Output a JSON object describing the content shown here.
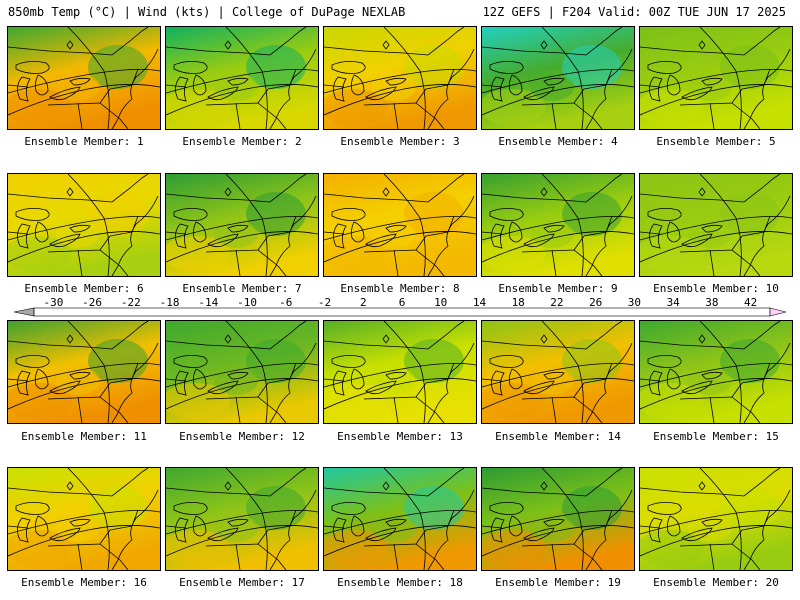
{
  "header": {
    "left": "850mb Temp (°C) | Wind (kts) | College of DuPage NEXLAB",
    "right": "12Z GEFS | F204 Valid: 00Z TUE JUN 17 2025"
  },
  "member_label_prefix": "Ensemble Member: ",
  "members": [
    {
      "number": "1",
      "base": "#f4b800",
      "north": "#3ea830",
      "south": "#f09000"
    },
    {
      "number": "2",
      "base": "#9acc10",
      "north": "#10b060",
      "south": "#d8d800"
    },
    {
      "number": "3",
      "base": "#f2d000",
      "north": "#c8d800",
      "south": "#f09800"
    },
    {
      "number": "4",
      "base": "#46ac2c",
      "north": "#20d0c0",
      "south": "#a8d010"
    },
    {
      "number": "5",
      "base": "#98cc10",
      "north": "#7cc018",
      "south": "#c8e000"
    },
    {
      "number": "6",
      "base": "#e8d800",
      "north": "#f0d000",
      "south": "#a8d010"
    },
    {
      "number": "7",
      "base": "#8ec418",
      "north": "#2c9c34",
      "south": "#f0d000"
    },
    {
      "number": "8",
      "base": "#f4d000",
      "north": "#f4b000",
      "south": "#f4b800"
    },
    {
      "number": "9",
      "base": "#98cc10",
      "north": "#38a030",
      "south": "#e0e000"
    },
    {
      "number": "10",
      "base": "#98cc10",
      "north": "#8cc418",
      "south": "#b8d810"
    },
    {
      "number": "11",
      "base": "#f2c000",
      "north": "#40a030",
      "south": "#f09000"
    },
    {
      "number": "12",
      "base": "#6cb822",
      "north": "#3ea830",
      "south": "#e8c800"
    },
    {
      "number": "13",
      "base": "#c8e000",
      "north": "#56b028",
      "south": "#e8e000"
    },
    {
      "number": "14",
      "base": "#f2c000",
      "north": "#8cc418",
      "south": "#f09800"
    },
    {
      "number": "15",
      "base": "#8ec418",
      "north": "#3ea830",
      "south": "#c8e000"
    },
    {
      "number": "16",
      "base": "#f2d000",
      "north": "#c8e000",
      "south": "#f0a800"
    },
    {
      "number": "17",
      "base": "#8ec418",
      "north": "#3ea830",
      "south": "#f0c000"
    },
    {
      "number": "18",
      "base": "#7cc018",
      "north": "#20c8a0",
      "south": "#f09800"
    },
    {
      "number": "19",
      "base": "#7cc018",
      "north": "#2c9c34",
      "south": "#f09000"
    },
    {
      "number": "20",
      "base": "#dcdc00",
      "north": "#c8e000",
      "south": "#98cc10"
    }
  ],
  "colorbar": {
    "ticks": [
      "-30",
      "-26",
      "-22",
      "-18",
      "-14",
      "-10",
      "-6",
      "-2",
      "2",
      "6",
      "10",
      "14",
      "18",
      "22",
      "26",
      "30",
      "34",
      "38",
      "42"
    ],
    "colors": [
      "#a8a8a8",
      "#888888",
      "#686868",
      "#7a7a7a",
      "#9a9a9a",
      "#b8b8b8",
      "#d0a0e8",
      "#c060e0",
      "#e070f0",
      "#b020c0",
      "#8010c0",
      "#4010b0",
      "#2020d0",
      "#2060f0",
      "#2090f0",
      "#20c0f0",
      "#40e0e0",
      "#20c8a0",
      "#10b060",
      "#30a030",
      "#50b020",
      "#90c818",
      "#c8e000",
      "#f0f000",
      "#f4d000",
      "#f4b000",
      "#f09000",
      "#f06000",
      "#e83010",
      "#e01010",
      "#c00010",
      "#900000",
      "#c02060",
      "#d040a0",
      "#e060c0",
      "#f080e0",
      "#f8a8f0",
      "#fcd0f8"
    ]
  }
}
